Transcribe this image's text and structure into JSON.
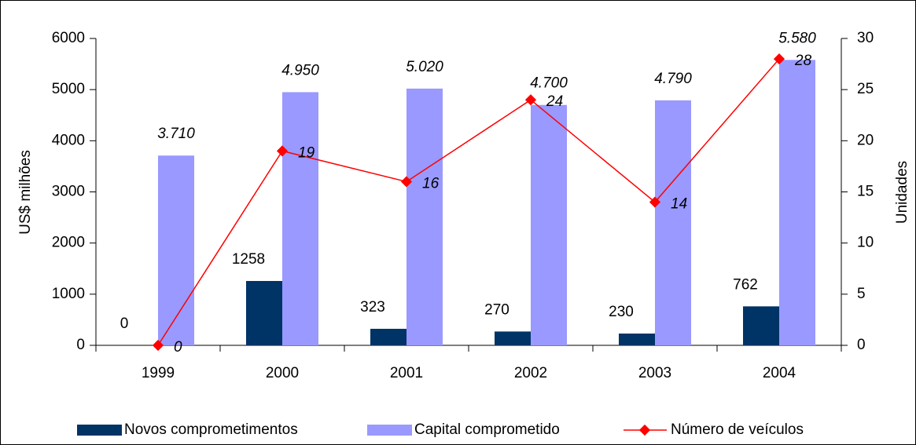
{
  "chart_data": {
    "type": "bar",
    "categories": [
      "1999",
      "2000",
      "2001",
      "2002",
      "2003",
      "2004"
    ],
    "series": [
      {
        "name": "Novos comprometimentos",
        "color": "#003366",
        "values": [
          0,
          1258,
          323,
          270,
          230,
          762
        ]
      },
      {
        "name": "Capital comprometido",
        "color": "#9999ff",
        "values": [
          3710,
          4950,
          5020,
          4700,
          4790,
          5580
        ],
        "value_labels": [
          "3.710",
          "4.950",
          "5.020",
          "4.700",
          "4.790",
          "5.580"
        ]
      },
      {
        "name": "Número de veículos",
        "type": "line",
        "axis": "y2",
        "color": "#ff0000",
        "values": [
          0,
          19,
          16,
          24,
          14,
          28
        ]
      }
    ],
    "ylabel": "US$ milhões",
    "y2label": "Unidades",
    "ylim": [
      0,
      6000
    ],
    "yticks": [
      0,
      1000,
      2000,
      3000,
      4000,
      5000,
      6000
    ],
    "y2lim": [
      0,
      30
    ],
    "y2ticks": [
      0,
      5,
      10,
      15,
      20,
      25,
      30
    ],
    "legend": "bottom"
  }
}
